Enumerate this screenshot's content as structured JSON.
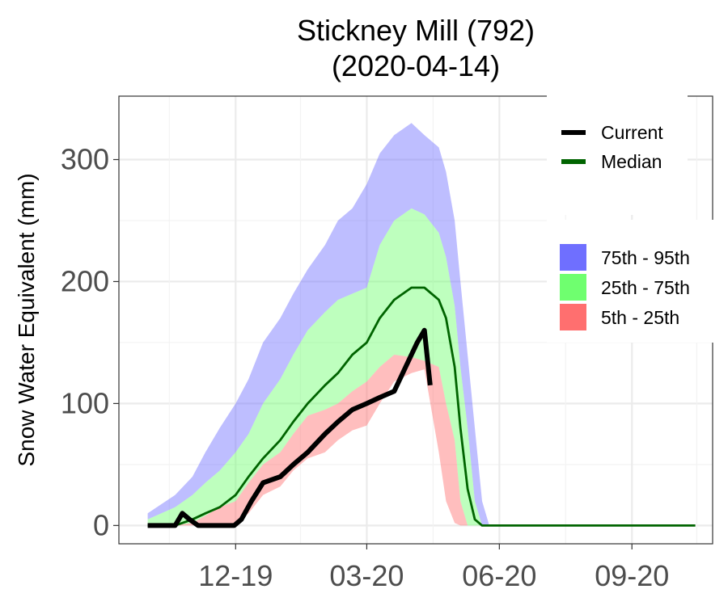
{
  "chart_data": {
    "type": "area",
    "title": "Stickney Mill (792)",
    "subtitle": "(2020-04-14)",
    "xlabel": "",
    "ylabel": "Snow Water Equivalent (mm)",
    "x_ticks": [
      {
        "label": "12-19",
        "date": "2019-12-01"
      },
      {
        "label": "03-20",
        "date": "2020-03-01"
      },
      {
        "label": "06-20",
        "date": "2020-06-01"
      },
      {
        "label": "09-20",
        "date": "2020-09-01"
      }
    ],
    "xlim": [
      "2019-09-11",
      "2020-10-27"
    ],
    "ylim": [
      -15,
      352
    ],
    "y_ticks": [
      0,
      100,
      200,
      300
    ],
    "grid": true,
    "legend_position": "top-right",
    "legend_lines": [
      {
        "name": "Current",
        "color": "#000000"
      },
      {
        "name": "Median",
        "color": "#006400"
      }
    ],
    "legend_bands": [
      {
        "name": "75th - 95th",
        "color": "#6f6fff"
      },
      {
        "name": "25th - 75th",
        "color": "#6fff6f"
      },
      {
        "name": "5th - 25th",
        "color": "#ff6f6f"
      }
    ],
    "bands": {
      "dates": [
        "2019-10-01",
        "2019-10-20",
        "2019-11-01",
        "2019-11-10",
        "2019-11-20",
        "2019-12-01",
        "2019-12-10",
        "2019-12-20",
        "2020-01-01",
        "2020-01-10",
        "2020-01-20",
        "2020-02-01",
        "2020-02-10",
        "2020-02-20",
        "2020-03-01",
        "2020-03-10",
        "2020-03-20",
        "2020-04-01",
        "2020-04-10",
        "2020-04-20",
        "2020-04-25",
        "2020-05-01",
        "2020-05-05",
        "2020-05-10",
        "2020-05-15",
        "2020-05-20",
        "2020-05-25",
        "2020-06-01",
        "2020-06-10",
        "2020-07-01",
        "2020-09-01",
        "2020-10-15"
      ],
      "p5": [
        0,
        0,
        0,
        0,
        0,
        0,
        10,
        25,
        32,
        45,
        55,
        60,
        70,
        78,
        82,
        100,
        118,
        125,
        128,
        60,
        20,
        2,
        0,
        0,
        0,
        0,
        0,
        0,
        0,
        0,
        0,
        0
      ],
      "p25": [
        0,
        0,
        2,
        8,
        15,
        20,
        35,
        50,
        60,
        75,
        90,
        95,
        100,
        110,
        118,
        130,
        140,
        138,
        135,
        130,
        100,
        70,
        20,
        0,
        0,
        0,
        0,
        0,
        0,
        0,
        0,
        0
      ],
      "p75": [
        5,
        15,
        25,
        35,
        45,
        60,
        75,
        100,
        120,
        140,
        160,
        175,
        185,
        190,
        195,
        230,
        250,
        260,
        255,
        240,
        220,
        180,
        130,
        80,
        20,
        0,
        0,
        0,
        0,
        0,
        0,
        0
      ],
      "p95": [
        10,
        25,
        40,
        60,
        80,
        100,
        120,
        150,
        170,
        190,
        210,
        230,
        250,
        260,
        280,
        305,
        320,
        330,
        320,
        310,
        290,
        250,
        200,
        140,
        80,
        20,
        0,
        0,
        0,
        0,
        0,
        0
      ]
    },
    "median": {
      "dates": [
        "2019-10-01",
        "2019-10-20",
        "2019-11-01",
        "2019-11-10",
        "2019-11-20",
        "2019-12-01",
        "2019-12-10",
        "2019-12-20",
        "2020-01-01",
        "2020-01-10",
        "2020-01-20",
        "2020-02-01",
        "2020-02-10",
        "2020-02-20",
        "2020-03-01",
        "2020-03-10",
        "2020-03-20",
        "2020-04-01",
        "2020-04-10",
        "2020-04-20",
        "2020-04-25",
        "2020-05-01",
        "2020-05-05",
        "2020-05-10",
        "2020-05-15",
        "2020-05-20",
        "2020-05-25",
        "2020-06-01",
        "2020-07-01",
        "2020-09-01",
        "2020-10-15"
      ],
      "values": [
        0,
        0,
        5,
        10,
        15,
        25,
        40,
        55,
        70,
        85,
        100,
        115,
        125,
        140,
        150,
        170,
        185,
        195,
        195,
        185,
        170,
        130,
        80,
        30,
        5,
        0,
        0,
        0,
        0,
        0,
        0
      ]
    },
    "current": {
      "dates": [
        "2019-10-01",
        "2019-10-20",
        "2019-10-25",
        "2019-10-30",
        "2019-11-05",
        "2019-11-20",
        "2019-11-30",
        "2019-12-05",
        "2019-12-12",
        "2019-12-20",
        "2020-01-01",
        "2020-01-10",
        "2020-01-20",
        "2020-02-01",
        "2020-02-10",
        "2020-02-20",
        "2020-03-01",
        "2020-03-10",
        "2020-03-20",
        "2020-03-28",
        "2020-04-05",
        "2020-04-10",
        "2020-04-14"
      ],
      "values": [
        0,
        0,
        10,
        5,
        0,
        0,
        0,
        5,
        20,
        35,
        40,
        50,
        60,
        75,
        85,
        95,
        100,
        105,
        110,
        130,
        150,
        160,
        115
      ]
    }
  }
}
